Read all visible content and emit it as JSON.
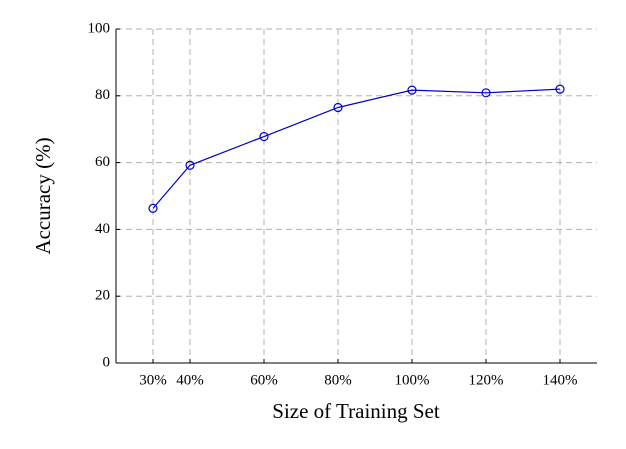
{
  "chart_data": {
    "type": "line",
    "xlabel": "Size of Training Set",
    "ylabel": "Accuracy (%)",
    "x": [
      30,
      40,
      60,
      80,
      100,
      120,
      140
    ],
    "values": [
      46.3,
      59.2,
      67.8,
      76.5,
      81.7,
      80.9,
      82.0
    ],
    "color": "#0000cc",
    "xlim": [
      20,
      150
    ],
    "xticks": [
      {
        "value": 30,
        "label": "30%"
      },
      {
        "value": 40,
        "label": "40%"
      },
      {
        "value": 60,
        "label": "60%"
      },
      {
        "value": 80,
        "label": "80%"
      },
      {
        "value": 100,
        "label": "100%"
      },
      {
        "value": 120,
        "label": "120%"
      },
      {
        "value": 140,
        "label": "140%"
      }
    ],
    "ylim": [
      0,
      100
    ],
    "yticks": [
      0,
      20,
      40,
      60,
      80,
      100
    ],
    "grid": true
  }
}
